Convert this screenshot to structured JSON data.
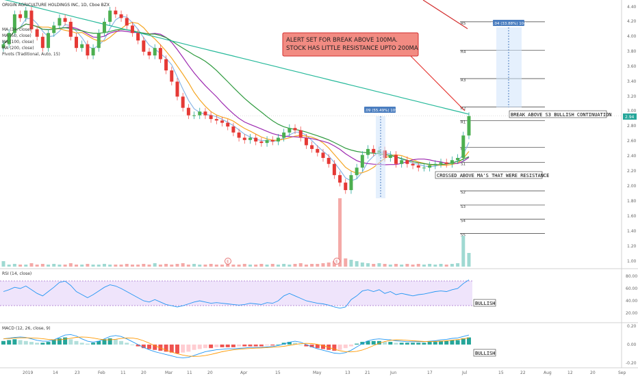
{
  "legend": {
    "title": "ORIGIN AGRICULTURE HOLDINGS INC, 1D, Cboe BZX",
    "ma_lines": [
      "MA (34, close)",
      "MA (50, close)",
      "MA (100, close)",
      "MA (200, close)"
    ],
    "pivots": "Pivots (Traditional, Auto, 15)"
  },
  "annotations": {
    "alert_line1": "ALERT SET FOR BREAK ABOVE 100MA.",
    "alert_line2": "STOCK HAS LITTLE RESISTANCE UPTO 200MA",
    "measure_lower": "1.09 (55.49%) 109",
    "measure_upper": "1.04 (33.88%) 104",
    "crossed": "CROSSED ABOVE MA'S THAT WERE RESISTANCE",
    "break_above": "BREAK ABOVE S3 BULLISH CONTINUATION",
    "rsi_bullish": "BULLISH",
    "macd_bullish": "BULLISH"
  },
  "pivot_labels": [
    "R5",
    "R4",
    "R3",
    "R2",
    "R1",
    "P",
    "S1",
    "S2",
    "S3",
    "S4",
    "S5"
  ],
  "earnings_marker": "E",
  "price_axis": [
    "4.40",
    "4.20",
    "4.00",
    "3.80",
    "3.60",
    "3.40",
    "3.20",
    "3.00",
    "2.80",
    "2.60",
    "2.40",
    "2.20",
    "2.00",
    "1.80",
    "1.60",
    "1.40",
    "1.20",
    "1.00"
  ],
  "last_price": "2.94",
  "rsi": {
    "title": "RSI (14, close)",
    "axis": [
      "80.00",
      "60.00",
      "40.00",
      "20.00"
    ]
  },
  "macd": {
    "title": "MACD (12, 26, close, 9)",
    "axis": [
      "0.20",
      "0.00",
      "-0.20"
    ]
  },
  "time_axis": [
    "2019",
    "14",
    "23",
    "Feb",
    "11",
    "20",
    "Mar",
    "11",
    "20",
    "Apr",
    "15",
    "May",
    "13",
    "21",
    "Jun",
    "17",
    "Jul",
    "15",
    "22",
    "Aug",
    "12",
    "20",
    "Sep"
  ],
  "colors": {
    "up": "#26a69a",
    "down": "#ef5350",
    "ma34": "#f5a623",
    "ma50": "#9c27b0",
    "ma100": "#2e9a3e",
    "ma200": "#26b99a",
    "rsi_line": "#2196f3",
    "macd_line": "#2196f3",
    "signal_line": "#ff9800"
  },
  "chart_data": {
    "type": "candlestick",
    "title": "ORIGIN AGRICULTURE HOLDINGS INC, 1D, Cboe BZX",
    "ylim": [
      0.9,
      4.45
    ],
    "closes": [
      3.9,
      4.05,
      4.3,
      4.25,
      4.35,
      4.1,
      4.0,
      3.85,
      4.05,
      4.15,
      4.25,
      4.2,
      4.0,
      3.85,
      3.9,
      3.75,
      3.85,
      4.05,
      4.2,
      4.35,
      4.3,
      4.25,
      4.15,
      4.05,
      3.95,
      3.8,
      3.75,
      3.85,
      3.7,
      3.55,
      3.4,
      3.2,
      3.05,
      2.95,
      2.95,
      3.0,
      2.95,
      2.9,
      2.88,
      2.85,
      2.8,
      2.72,
      2.65,
      2.62,
      2.65,
      2.6,
      2.58,
      2.62,
      2.6,
      2.65,
      2.72,
      2.78,
      2.75,
      2.65,
      2.55,
      2.5,
      2.45,
      2.38,
      2.3,
      2.15,
      2.05,
      1.95,
      2.15,
      2.25,
      2.42,
      2.5,
      2.45,
      2.48,
      2.38,
      2.42,
      2.3,
      2.35,
      2.3,
      2.28,
      2.25,
      2.25,
      2.28,
      2.3,
      2.32,
      2.3,
      2.35,
      2.38,
      2.68,
      2.94
    ],
    "volume": [
      0.08,
      0.03,
      0.04,
      0.03,
      0.03,
      0.05,
      0.03,
      0.04,
      0.03,
      0.04,
      0.03,
      0.03,
      0.05,
      0.03,
      0.03,
      0.04,
      0.03,
      0.03,
      0.04,
      0.03,
      0.03,
      0.03,
      0.04,
      0.03,
      0.03,
      0.04,
      0.03,
      0.05,
      0.03,
      0.04,
      0.03,
      0.04,
      0.05,
      0.03,
      0.04,
      0.03,
      0.03,
      0.04,
      0.03,
      0.03,
      0.04,
      0.03,
      0.03,
      0.04,
      0.03,
      0.03,
      0.04,
      0.03,
      0.04,
      0.03,
      0.04,
      0.03,
      0.04,
      0.05,
      0.03,
      0.04,
      0.04,
      0.05,
      0.06,
      0.08,
      1.0,
      0.12,
      0.1,
      0.08,
      0.06,
      0.05,
      0.04,
      0.05,
      0.04,
      0.03,
      0.04,
      0.03,
      0.04,
      0.03,
      0.04,
      0.03,
      0.04,
      0.03,
      0.04,
      0.03,
      0.04,
      0.05,
      0.45,
      0.2
    ],
    "rsi": [
      55,
      58,
      62,
      60,
      64,
      58,
      52,
      48,
      55,
      62,
      70,
      72,
      65,
      55,
      50,
      45,
      50,
      56,
      62,
      66,
      64,
      60,
      55,
      50,
      45,
      40,
      38,
      42,
      38,
      34,
      32,
      30,
      32,
      35,
      38,
      40,
      38,
      36,
      37,
      36,
      35,
      34,
      33,
      34,
      36,
      35,
      34,
      37,
      36,
      40,
      48,
      52,
      48,
      44,
      40,
      38,
      36,
      35,
      33,
      30,
      28,
      30,
      42,
      48,
      56,
      58,
      55,
      58,
      52,
      55,
      50,
      52,
      50,
      48,
      50,
      51,
      53,
      55,
      56,
      55,
      58,
      60,
      68,
      74
    ],
    "macd_hist": [
      0.04,
      0.05,
      0.06,
      0.05,
      0.04,
      0.03,
      0.02,
      0.02,
      0.03,
      0.05,
      0.07,
      0.08,
      0.06,
      0.04,
      0.02,
      0.01,
      0.02,
      0.04,
      0.06,
      0.07,
      0.06,
      0.04,
      0.02,
      0.0,
      -0.02,
      -0.04,
      -0.05,
      -0.06,
      -0.07,
      -0.08,
      -0.09,
      -0.1,
      -0.09,
      -0.08,
      -0.06,
      -0.05,
      -0.04,
      -0.04,
      -0.03,
      -0.03,
      -0.03,
      -0.03,
      -0.02,
      -0.02,
      -0.02,
      -0.02,
      -0.02,
      -0.01,
      -0.01,
      0.0,
      0.02,
      0.03,
      0.02,
      0.0,
      -0.02,
      -0.03,
      -0.04,
      -0.05,
      -0.06,
      -0.07,
      -0.06,
      -0.04,
      -0.02,
      0.01,
      0.03,
      0.04,
      0.04,
      0.04,
      0.03,
      0.03,
      0.02,
      0.02,
      0.02,
      0.02,
      0.02,
      0.02,
      0.03,
      0.03,
      0.04,
      0.04,
      0.05,
      0.05,
      0.07,
      0.08
    ],
    "pivots": {
      "R5": 4.2,
      "R4": 3.82,
      "R3": 3.44,
      "R2": 3.06,
      "R1": 2.88,
      "P": 2.52,
      "S1": 2.32,
      "S2": 1.94,
      "S3": 1.75,
      "S4": 1.56,
      "S5": 1.37
    }
  }
}
